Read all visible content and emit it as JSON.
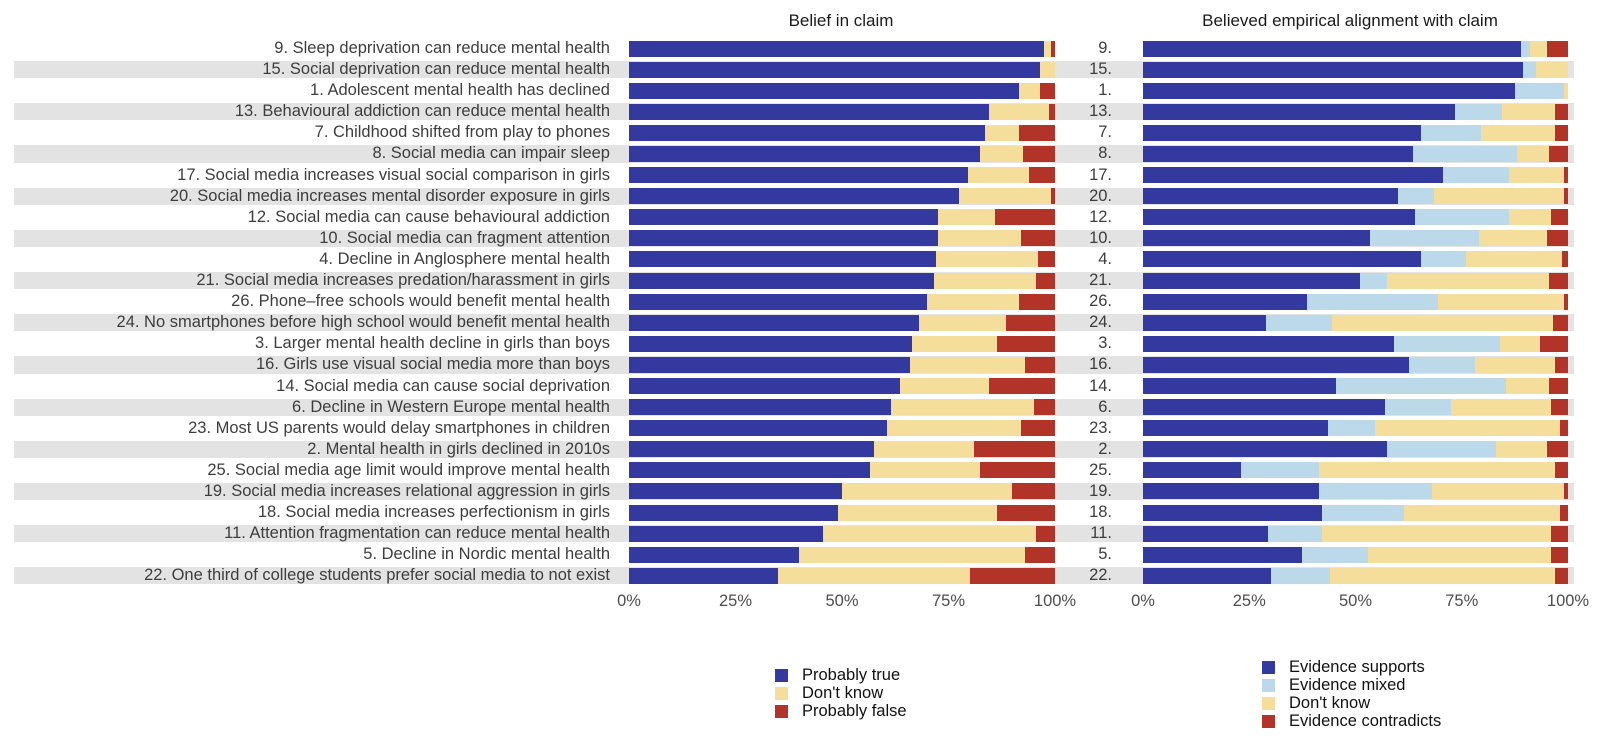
{
  "colors": {
    "probably_true": "#33399E",
    "dont_know": "#F5DE9B",
    "probably_false": "#B23327",
    "evidence_supports": "#33399E",
    "evidence_mixed": "#BCD9EA",
    "evidence_dont_know": "#F5DE9B",
    "evidence_contradicts": "#B23327",
    "stripe": "#e3e3e3"
  },
  "chart_data": {
    "type": "bar",
    "orientation": "horizontal",
    "stacked": true,
    "grid": false,
    "xlim": [
      0,
      100
    ],
    "axis_ticks": [
      "0%",
      "25%",
      "50%",
      "75%",
      "100%"
    ],
    "panels": [
      {
        "title": "Belief in claim",
        "legend_position": "bottom",
        "series": [
          {
            "name": "Probably true",
            "color": "#33399E"
          },
          {
            "name": "Don't know",
            "color": "#F5DE9B"
          },
          {
            "name": "Probably false",
            "color": "#B23327"
          }
        ]
      },
      {
        "title": "Believed empirical alignment with claim",
        "legend_position": "bottom",
        "series": [
          {
            "name": "Evidence supports",
            "color": "#33399E"
          },
          {
            "name": "Evidence mixed",
            "color": "#BCD9EA"
          },
          {
            "name": "Don't know",
            "color": "#F5DE9B"
          },
          {
            "name": "Evidence contradicts",
            "color": "#B23327"
          }
        ]
      }
    ],
    "rows": [
      {
        "num": "9.",
        "label": "9. Sleep deprivation can reduce mental health",
        "belief": [
          97.5,
          1.5,
          1
        ],
        "alignment": [
          89,
          2,
          4,
          5
        ]
      },
      {
        "num": "15.",
        "label": "15. Social deprivation can reduce mental health",
        "belief": [
          96.5,
          3.5,
          0
        ],
        "alignment": [
          89.5,
          3,
          7.5,
          0
        ]
      },
      {
        "num": "1.",
        "label": "1. Adolescent mental health has declined",
        "belief": [
          91.5,
          5,
          3.5
        ],
        "alignment": [
          87.5,
          11.5,
          1,
          0
        ]
      },
      {
        "num": "13.",
        "label": "13. Behavioural addiction can reduce mental health",
        "belief": [
          84.5,
          14,
          1.5
        ],
        "alignment": [
          73.5,
          11,
          12.5,
          3
        ]
      },
      {
        "num": "7.",
        "label": "7. Childhood shifted from play to phones",
        "belief": [
          83.5,
          8,
          8.5
        ],
        "alignment": [
          65.5,
          14,
          17.5,
          3
        ]
      },
      {
        "num": "8.",
        "label": "8. Social media can impair sleep",
        "belief": [
          82.5,
          10,
          7.5
        ],
        "alignment": [
          63.5,
          24.5,
          7.5,
          4.5
        ]
      },
      {
        "num": "17.",
        "label": "17. Social media increases visual social comparison in girls",
        "belief": [
          79.5,
          14.5,
          6
        ],
        "alignment": [
          70.5,
          15.5,
          13,
          1
        ]
      },
      {
        "num": "20.",
        "label": "20. Social media increases mental disorder exposure in girls",
        "belief": [
          77.5,
          21.5,
          1
        ],
        "alignment": [
          60,
          8.5,
          30.5,
          1
        ]
      },
      {
        "num": "12.",
        "label": "12. Social media can cause behavioural addiction",
        "belief": [
          72.5,
          13.5,
          14
        ],
        "alignment": [
          64,
          22,
          10,
          4
        ]
      },
      {
        "num": "10.",
        "label": "10. Social media can fragment attention",
        "belief": [
          72.5,
          19.5,
          8
        ],
        "alignment": [
          53.5,
          25.5,
          16,
          5
        ]
      },
      {
        "num": "4.",
        "label": "4. Decline in Anglosphere mental health",
        "belief": [
          72,
          24,
          4
        ],
        "alignment": [
          65.5,
          10.5,
          22.5,
          1.5
        ]
      },
      {
        "num": "21.",
        "label": "21. Social media increases predation/harassment in girls",
        "belief": [
          71.5,
          24,
          4.5
        ],
        "alignment": [
          51,
          6.5,
          38,
          4.5
        ]
      },
      {
        "num": "26.",
        "label": "26. Phone–free schools would benefit mental health",
        "belief": [
          70,
          21.5,
          8.5
        ],
        "alignment": [
          38.5,
          31,
          29.5,
          1
        ]
      },
      {
        "num": "24.",
        "label": "24. No smartphones before high school would benefit mental health",
        "belief": [
          68,
          20.5,
          11.5
        ],
        "alignment": [
          29,
          15.5,
          52,
          3.5
        ]
      },
      {
        "num": "3.",
        "label": "3. Larger mental health decline in girls than boys",
        "belief": [
          66.5,
          20,
          13.5
        ],
        "alignment": [
          59,
          25,
          9.5,
          6.5
        ]
      },
      {
        "num": "16.",
        "label": "16. Girls use visual social media more than boys",
        "belief": [
          66,
          27,
          7
        ],
        "alignment": [
          62.5,
          15.5,
          19,
          3
        ]
      },
      {
        "num": "14.",
        "label": "14. Social media can cause social deprivation",
        "belief": [
          63.5,
          21,
          15.5
        ],
        "alignment": [
          45.5,
          40,
          10,
          4.5
        ]
      },
      {
        "num": "6.",
        "label": "6. Decline in Western Europe mental health",
        "belief": [
          61.5,
          33.5,
          5
        ],
        "alignment": [
          57,
          15.5,
          23.5,
          4
        ]
      },
      {
        "num": "23.",
        "label": "23. Most US parents would delay smartphones in children",
        "belief": [
          60.5,
          31.5,
          8
        ],
        "alignment": [
          43.5,
          11,
          43.5,
          2
        ]
      },
      {
        "num": "2.",
        "label": "2. Mental health in girls declined in 2010s",
        "belief": [
          57.5,
          23.5,
          19
        ],
        "alignment": [
          57.5,
          25.5,
          12,
          5
        ]
      },
      {
        "num": "25.",
        "label": "25. Social media age limit would improve mental health",
        "belief": [
          56.5,
          26,
          17.5
        ],
        "alignment": [
          23,
          18.5,
          55.5,
          3
        ]
      },
      {
        "num": "19.",
        "label": "19. Social media increases relational aggression in girls",
        "belief": [
          50,
          40,
          10
        ],
        "alignment": [
          41.5,
          26.5,
          31,
          1
        ]
      },
      {
        "num": "18.",
        "label": "18. Social media increases perfectionism in girls",
        "belief": [
          49,
          37.5,
          13.5
        ],
        "alignment": [
          42,
          19.5,
          36.5,
          2
        ]
      },
      {
        "num": "11.",
        "label": "11. Attention fragmentation can reduce mental health",
        "belief": [
          45.5,
          50,
          4.5
        ],
        "alignment": [
          29.5,
          12.5,
          54,
          4
        ]
      },
      {
        "num": "5.",
        "label": "5. Decline in Nordic mental health",
        "belief": [
          40,
          53,
          7
        ],
        "alignment": [
          37.5,
          15.5,
          43,
          4
        ]
      },
      {
        "num": "22.",
        "label": "22. One third of college students prefer social media to not exist",
        "belief": [
          35,
          45,
          20
        ],
        "alignment": [
          30,
          14,
          53,
          3
        ]
      }
    ]
  }
}
